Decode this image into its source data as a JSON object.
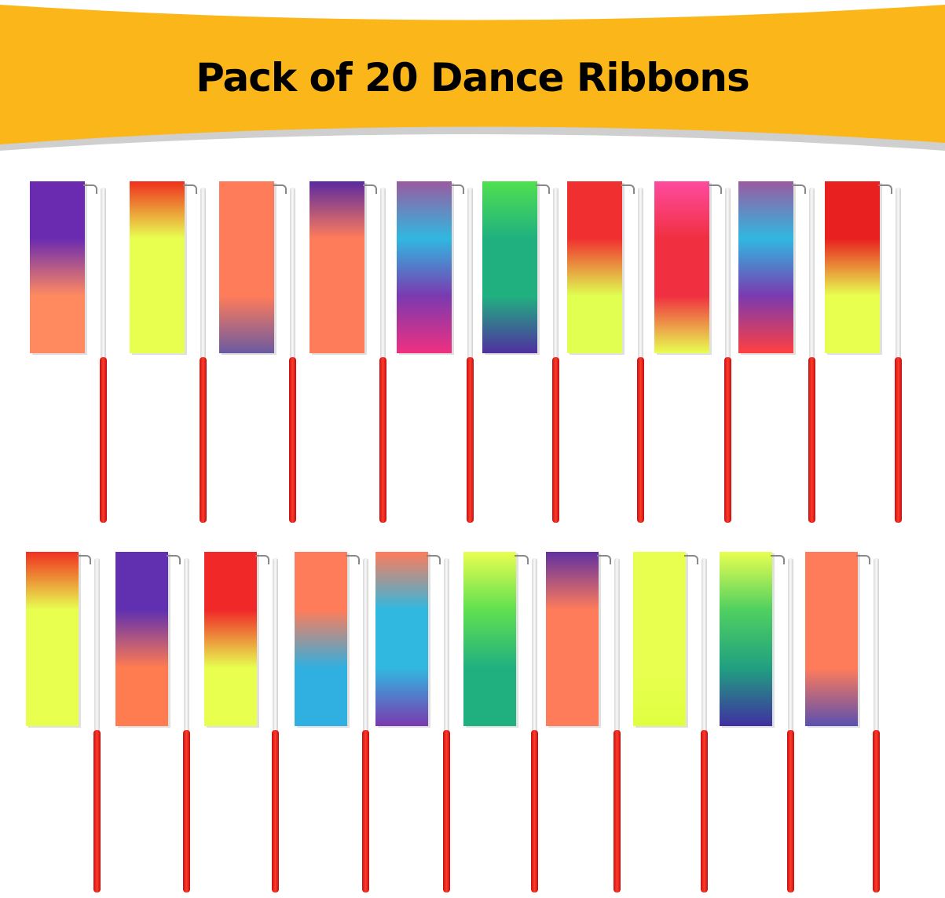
{
  "banner": {
    "title": "Pack of 20 Dance Ribbons",
    "color": "#fbb61a"
  },
  "ribbons": [
    {
      "colors": [
        "#6a2bb0",
        "#6a2bb0",
        "#ff8a60",
        "#ff8a60"
      ]
    },
    {
      "colors": [
        "#f0301e",
        "#e8ff50",
        "#e8ff50",
        "#e8ff50"
      ]
    },
    {
      "colors": [
        "#ff7c5a",
        "#ff7c5a",
        "#ff7c5a",
        "#6a5aa0"
      ]
    },
    {
      "colors": [
        "#5a2aa0",
        "#ff7c5a",
        "#ff7c5a",
        "#ff7c5a"
      ]
    },
    {
      "colors": [
        "#9a5aa0",
        "#30b8e0",
        "#7a3ab0",
        "#f03080"
      ]
    },
    {
      "colors": [
        "#50e050",
        "#20b080",
        "#20b080",
        "#5030a0"
      ]
    },
    {
      "colors": [
        "#f03030",
        "#f03030",
        "#e0ff50",
        "#e0ff50"
      ]
    },
    {
      "colors": [
        "#ff4aa0",
        "#f03040",
        "#f03040",
        "#e8ff50"
      ]
    },
    {
      "colors": [
        "#9a5aa0",
        "#30b8e0",
        "#7a3ab0",
        "#ff4040"
      ]
    },
    {
      "colors": [
        "#e82020",
        "#e82020",
        "#e8ff50",
        "#e8ff50"
      ]
    },
    {
      "colors": [
        "#f03020",
        "#e8ff50",
        "#e8ff50",
        "#e8ff50"
      ]
    },
    {
      "colors": [
        "#6030b0",
        "#6030b0",
        "#ff7c50",
        "#ff7c50"
      ]
    },
    {
      "colors": [
        "#f02828",
        "#f02828",
        "#e8ff50",
        "#e8ff50"
      ]
    },
    {
      "colors": [
        "#ff7c5a",
        "#ff7c5a",
        "#30b0e0",
        "#30b0e0"
      ]
    },
    {
      "colors": [
        "#ff7c5a",
        "#30b8e0",
        "#30b8e0",
        "#7a3ab0"
      ]
    },
    {
      "colors": [
        "#e8ff50",
        "#60e050",
        "#20b080",
        "#20b080"
      ]
    },
    {
      "colors": [
        "#6030a0",
        "#ff7c5a",
        "#ff7c5a",
        "#ff7c5a"
      ]
    },
    {
      "colors": [
        "#e8ff50",
        "#e8ff50",
        "#e8ff50",
        "#e0ff40"
      ]
    },
    {
      "colors": [
        "#e8ff50",
        "#50d060",
        "#20a080",
        "#4030a0"
      ]
    },
    {
      "colors": [
        "#ff7c5a",
        "#ff7c5a",
        "#ff7c5a",
        "#5a50b0"
      ]
    }
  ]
}
